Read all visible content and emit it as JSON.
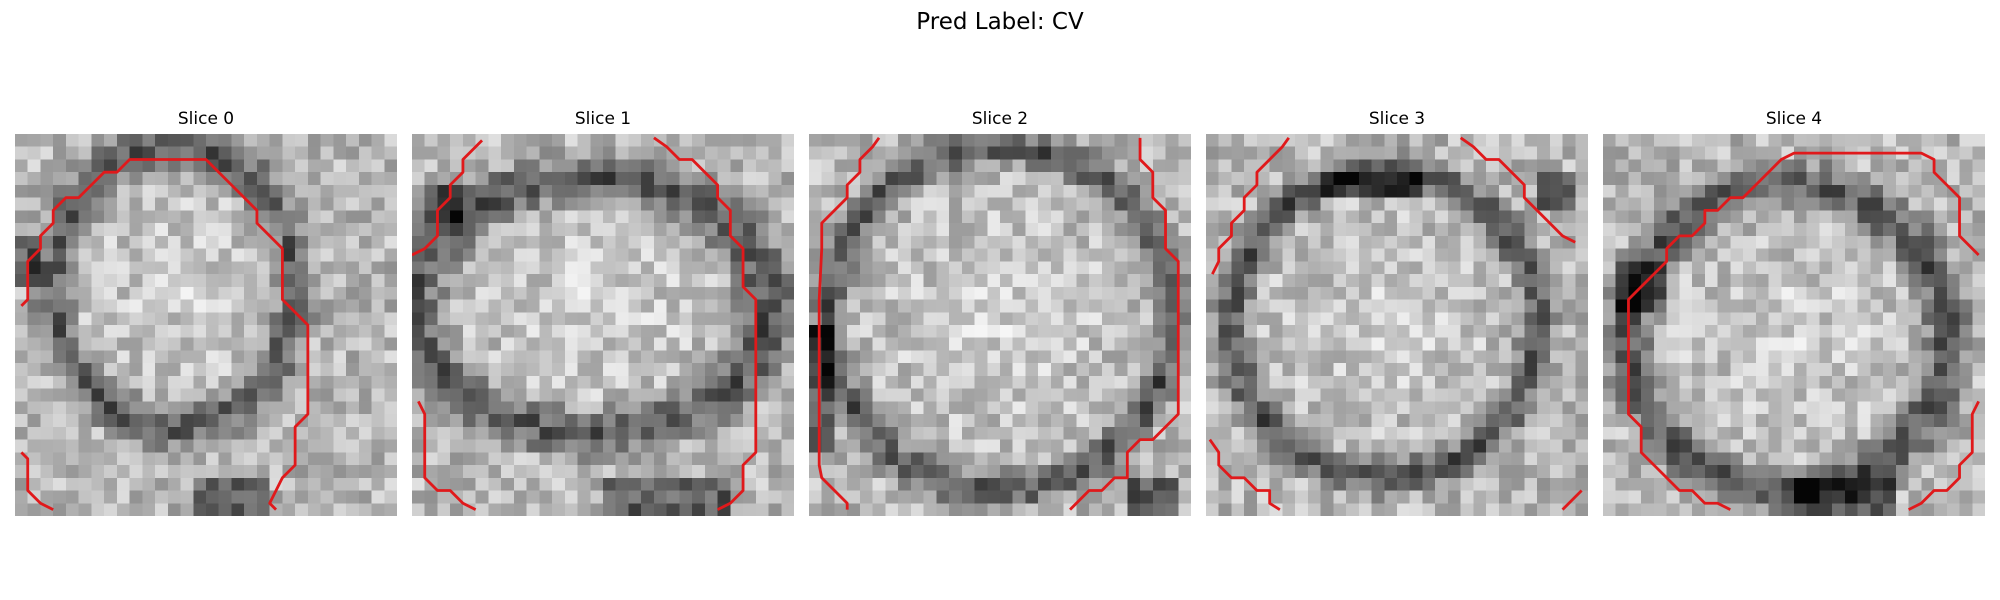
{
  "figure": {
    "title": "Pred Label: CV"
  },
  "slices": [
    {
      "title": "Slice 0",
      "seed": 11
    },
    {
      "title": "Slice 1",
      "seed": 27
    },
    {
      "title": "Slice 2",
      "seed": 43
    },
    {
      "title": "Slice 3",
      "seed": 59
    },
    {
      "title": "Slice 4",
      "seed": 71
    }
  ],
  "style": {
    "contour_color": "#e0191b",
    "colormap": "gray"
  }
}
